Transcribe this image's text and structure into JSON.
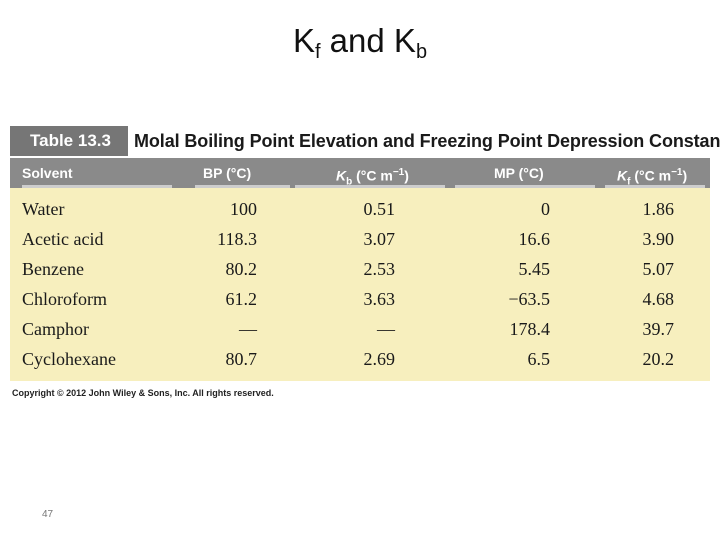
{
  "slide": {
    "title_main_k1": "K",
    "title_sub_1": "f",
    "title_and": " and K",
    "title_sub_2": "b",
    "page_number": "47",
    "copyright": "Copyright © 2012 John Wiley & Sons, Inc. All rights reserved."
  },
  "table": {
    "label": "Table 13.3",
    "caption": "Molal Boiling Point Elevation and Freezing Point Depression Constants",
    "headers": {
      "solvent": "Solvent",
      "bp": "BP (°C)",
      "kb_k": "K",
      "kb_sub": "b",
      "kb_unit": " (°C m",
      "kb_exp": "−1",
      "kb_close": ")",
      "mp": "MP (°C)",
      "kf_k": "K",
      "kf_sub": "f",
      "kf_unit": " (°C m",
      "kf_exp": "−1",
      "kf_close": ")"
    },
    "rows": [
      {
        "solvent": "Water",
        "bp": "100",
        "kb": "0.51",
        "mp": "0",
        "kf": "1.86"
      },
      {
        "solvent": "Acetic acid",
        "bp": "118.3",
        "kb": "3.07",
        "mp": "16.6",
        "kf": "3.90"
      },
      {
        "solvent": "Benzene",
        "bp": "80.2",
        "kb": "2.53",
        "mp": "5.45",
        "kf": "5.07"
      },
      {
        "solvent": "Chloroform",
        "bp": "61.2",
        "kb": "3.63",
        "mp": "−63.5",
        "kf": "4.68"
      },
      {
        "solvent": "Camphor",
        "bp": "—",
        "kb": "—",
        "mp": "178.4",
        "kf": "39.7"
      },
      {
        "solvent": "Cyclohexane",
        "bp": "80.7",
        "kb": "2.69",
        "mp": "6.5",
        "kf": "20.2"
      }
    ]
  },
  "colors": {
    "label_bg": "#767676",
    "header_bg": "#8a8a8a",
    "body_bg": "#f7efbe"
  }
}
